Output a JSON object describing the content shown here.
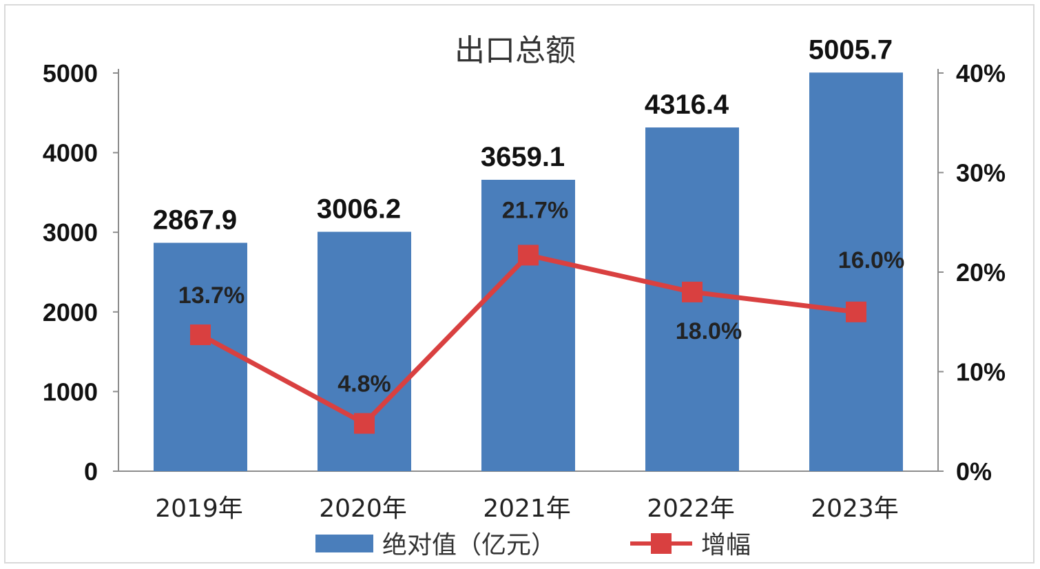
{
  "chart_data": {
    "type": "bar",
    "title": "出口总额",
    "categories": [
      "2019年",
      "2020年",
      "2021年",
      "2022年",
      "2023年"
    ],
    "series": [
      {
        "name": "绝对值（亿元）",
        "kind": "bar",
        "axis": "left",
        "values": [
          2867.9,
          3006.2,
          3659.1,
          4316.4,
          5005.7
        ],
        "labels": [
          "2867.9",
          "3006.2",
          "3659.1",
          "4316.4",
          "5005.7"
        ],
        "color": "#4a7ebb"
      },
      {
        "name": "增幅",
        "kind": "line",
        "axis": "right",
        "values": [
          13.7,
          4.8,
          21.7,
          18.0,
          16.0
        ],
        "labels": [
          "13.7%",
          "4.8%",
          "21.7%",
          "18.0%",
          "16.0%"
        ],
        "color": "#d94040"
      }
    ],
    "y_left": {
      "ylim": [
        0,
        5000
      ],
      "ticks": [
        "0",
        "1000",
        "2000",
        "3000",
        "4000",
        "5000"
      ]
    },
    "y_right": {
      "ylim": [
        0,
        40
      ],
      "ticks": [
        "0%",
        "10%",
        "20%",
        "30%",
        "40%"
      ]
    },
    "grid": false,
    "legend": "bottom"
  }
}
